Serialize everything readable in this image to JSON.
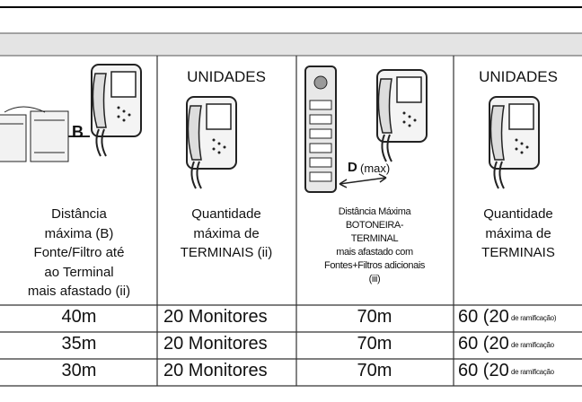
{
  "diagram_labels": {
    "distance_b": "B",
    "distance_d": "D",
    "max": "(max)"
  },
  "headers": [
    {
      "lines": [
        "Distância",
        "máxima (B)",
        "Fonte/Filtro até",
        "ao Terminal",
        "mais afastado (ii)"
      ]
    },
    {
      "unit": "UNIDADES",
      "lines": [
        "Quantidade",
        "máxima de",
        "TERMINAIS (ii)"
      ]
    },
    {
      "lines": [
        "Distância Máxima",
        "BOTONEIRA-",
        "TERMINAL",
        "mais afastado com",
        "Fontes+Filtros adicionais",
        "(iii)"
      ]
    },
    {
      "unit": "UNIDADES",
      "lines": [
        "Quantidade",
        "máxima de",
        "TERMINAIS"
      ]
    }
  ],
  "rows": [
    {
      "distance": "40m",
      "monitors": "20 Monitores",
      "max_distance": "70m",
      "terminals": "60 (20",
      "branch": "de ramificação)"
    },
    {
      "distance": "35m",
      "monitors": "20 Monitores",
      "max_distance": "70m",
      "terminals": "60 (20",
      "branch": "de ramificação"
    },
    {
      "distance": "30m",
      "monitors": "20 Monitores",
      "max_distance": "70m",
      "terminals": "60 (20",
      "branch": "de ramificação"
    }
  ]
}
